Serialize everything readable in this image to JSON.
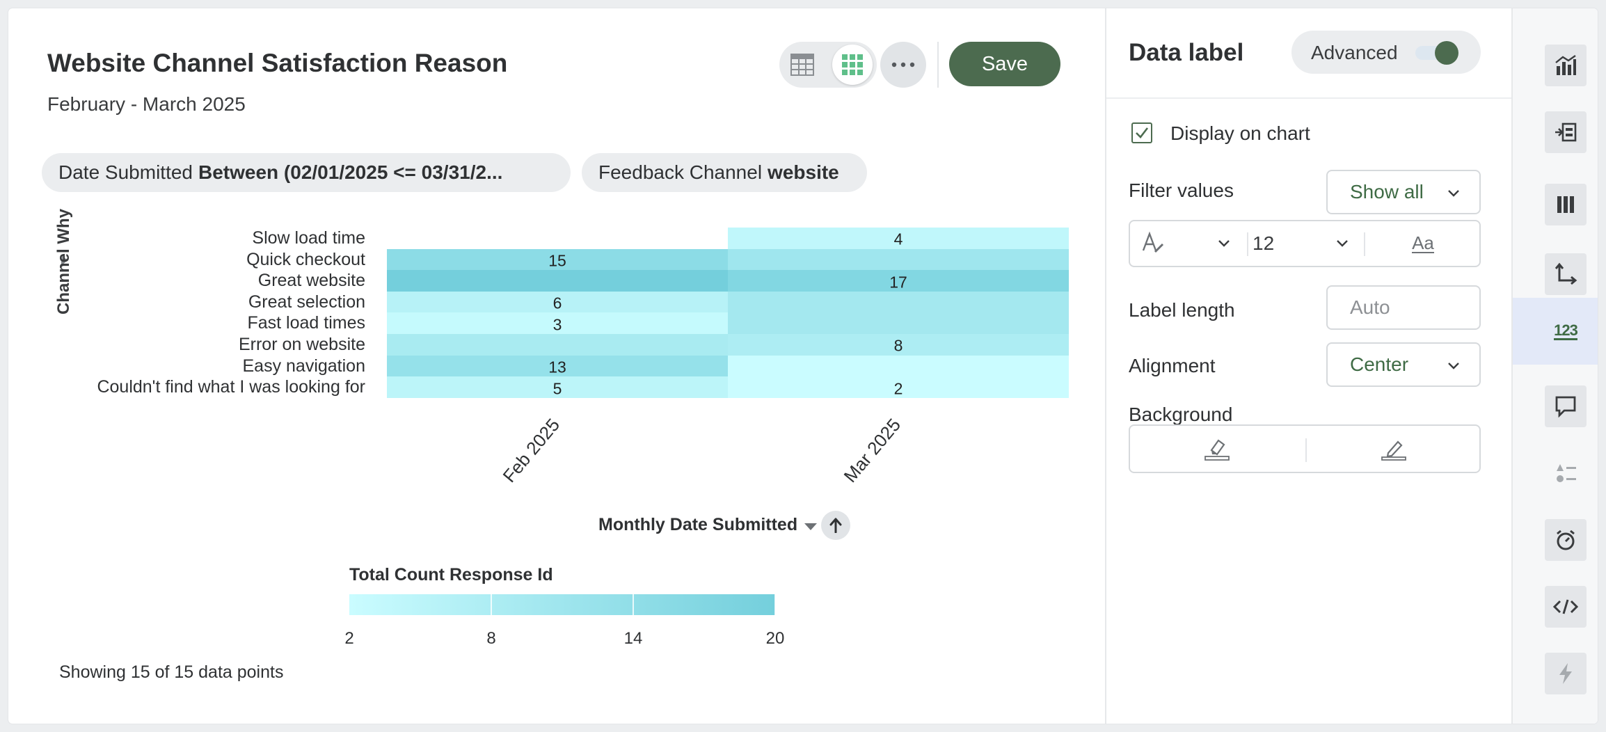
{
  "header": {
    "title": "Website Channel Satisfaction Reason",
    "subtitle": "February - March 2025",
    "save_label": "Save",
    "view_icons": [
      "table-icon",
      "grid-icon"
    ],
    "more_icon": "more-icon"
  },
  "filters": [
    {
      "field": "Date Submitted",
      "value": "Between (02/01/2025 <= 03/31/2..."
    },
    {
      "field": "Feedback Channel",
      "value": "website"
    }
  ],
  "chart_data": {
    "type": "heatmap",
    "y_label": "Channel Why",
    "x_label": "Monthly Date Submitted",
    "x_categories": [
      "Feb 2025",
      "Mar 2025"
    ],
    "y_categories": [
      "Slow load time",
      "Quick checkout",
      "Great website",
      "Great selection",
      "Fast load times",
      "Error on website",
      "Easy navigation",
      "Couldn't find what I was looking for"
    ],
    "values": [
      [
        null,
        4
      ],
      [
        15,
        11
      ],
      [
        20,
        17
      ],
      [
        6,
        10
      ],
      [
        3,
        10
      ],
      [
        9,
        8
      ],
      [
        13,
        2
      ],
      [
        5,
        2
      ]
    ],
    "shown_labels": [
      [
        false,
        true
      ],
      [
        true,
        false
      ],
      [
        false,
        true
      ],
      [
        true,
        false
      ],
      [
        true,
        false
      ],
      [
        false,
        true
      ],
      [
        true,
        false
      ],
      [
        true,
        true
      ]
    ],
    "legend": {
      "title": "Total Count Response Id",
      "min": 2,
      "max": 20,
      "ticks": [
        2,
        8,
        14,
        20
      ],
      "color_low": "#cafcff",
      "color_high": "#74cfdc"
    }
  },
  "footer": {
    "count_text": "Showing 15 of 15 data points"
  },
  "panel": {
    "title": "Data label",
    "advanced_label": "Advanced",
    "advanced_on": true,
    "display_on_chart_label": "Display on chart",
    "display_on_chart": true,
    "filter_values_label": "Filter values",
    "filter_values_value": "Show all",
    "font_size_value": "12",
    "text_case_icon": "Aa",
    "label_length_label": "Label length",
    "label_length_placeholder": "Auto",
    "alignment_label": "Alignment",
    "alignment_value": "Center",
    "background_label": "Background"
  },
  "rail": {
    "icons": [
      "chart-type-icon",
      "move-chart-icon",
      "columns-icon",
      "axes-icon",
      "data-label-icon",
      "tooltip-icon",
      "legend-icon",
      "timer-icon",
      "code-icon",
      "lightning-icon"
    ],
    "active": "data-label-icon",
    "data_label_glyph": "123"
  },
  "colors": {
    "accent": "#4c6b4f"
  }
}
